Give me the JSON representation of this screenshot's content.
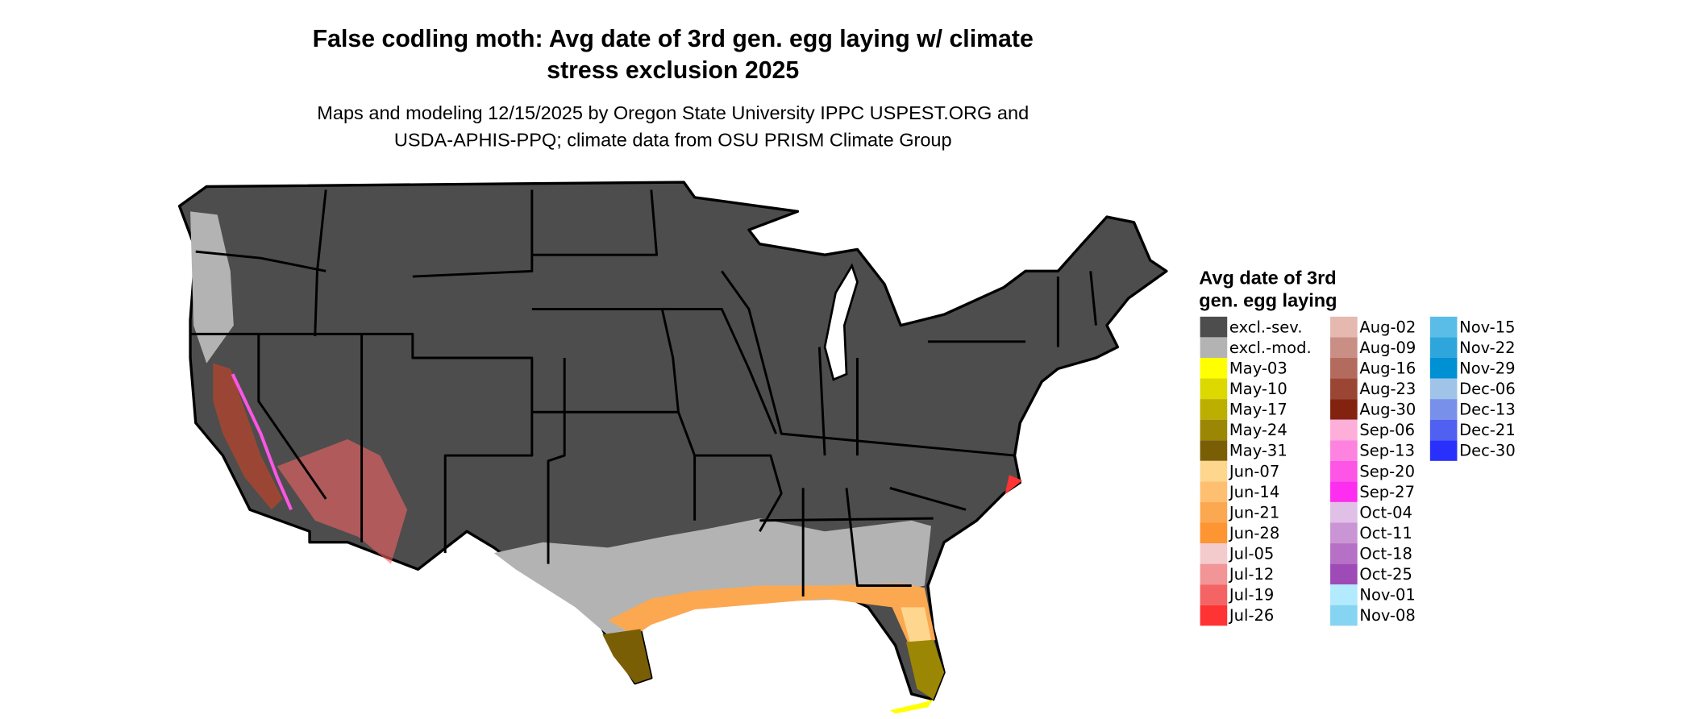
{
  "title": {
    "line1": "False codling moth: Avg date of 3rd gen. egg laying w/ climate",
    "line2": "stress exclusion 2025"
  },
  "subtitle": {
    "line1": "Maps and modeling 12/15/2025 by Oregon State University IPPC USPEST.ORG and",
    "line2": "USDA-APHIS-PPQ; climate data from OSU PRISM Climate Group"
  },
  "legend": {
    "title_line1": "Avg date of 3rd",
    "title_line2": "gen. egg laying",
    "items": [
      {
        "label": "excl.-sev.",
        "color": "#4d4d4d"
      },
      {
        "label": "excl.-mod.",
        "color": "#b3b3b3"
      },
      {
        "label": "May-03",
        "color": "#ffff00"
      },
      {
        "label": "May-10",
        "color": "#dcd800"
      },
      {
        "label": "May-17",
        "color": "#bcaf00"
      },
      {
        "label": "May-24",
        "color": "#9c8705"
      },
      {
        "label": "May-31",
        "color": "#7a5e06"
      },
      {
        "label": "Jun-07",
        "color": "#fed68e"
      },
      {
        "label": "Jun-14",
        "color": "#febf70"
      },
      {
        "label": "Jun-21",
        "color": "#fca851"
      },
      {
        "label": "Jun-28",
        "color": "#fc9532"
      },
      {
        "label": "Jul-05",
        "color": "#f4cbcc"
      },
      {
        "label": "Jul-12",
        "color": "#f29596"
      },
      {
        "label": "Jul-19",
        "color": "#f46465"
      },
      {
        "label": "Jul-26",
        "color": "#fe3333"
      },
      {
        "label": "Aug-02",
        "color": "#e5b8b0"
      },
      {
        "label": "Aug-09",
        "color": "#c98f85"
      },
      {
        "label": "Aug-16",
        "color": "#b36b5d"
      },
      {
        "label": "Aug-23",
        "color": "#9b4635"
      },
      {
        "label": "Aug-30",
        "color": "#842210"
      },
      {
        "label": "Sep-06",
        "color": "#fdafd9"
      },
      {
        "label": "Sep-13",
        "color": "#fe82e0"
      },
      {
        "label": "Sep-20",
        "color": "#fd55e6"
      },
      {
        "label": "Sep-27",
        "color": "#fd2ef0"
      },
      {
        "label": "Oct-04",
        "color": "#e0c0e6"
      },
      {
        "label": "Oct-11",
        "color": "#ca95d4"
      },
      {
        "label": "Oct-18",
        "color": "#b670c6"
      },
      {
        "label": "Oct-25",
        "color": "#9e4bb7"
      },
      {
        "label": "Nov-01",
        "color": "#b2eafe"
      },
      {
        "label": "Nov-08",
        "color": "#85d4f2"
      },
      {
        "label": "Nov-15",
        "color": "#5abde8"
      },
      {
        "label": "Nov-22",
        "color": "#2ea6db"
      },
      {
        "label": "Nov-29",
        "color": "#0090d4"
      },
      {
        "label": "Dec-06",
        "color": "#a0c4e8"
      },
      {
        "label": "Dec-13",
        "color": "#7890ea"
      },
      {
        "label": "Dec-21",
        "color": "#5060f0"
      },
      {
        "label": "Dec-30",
        "color": "#2a30fc"
      }
    ]
  }
}
